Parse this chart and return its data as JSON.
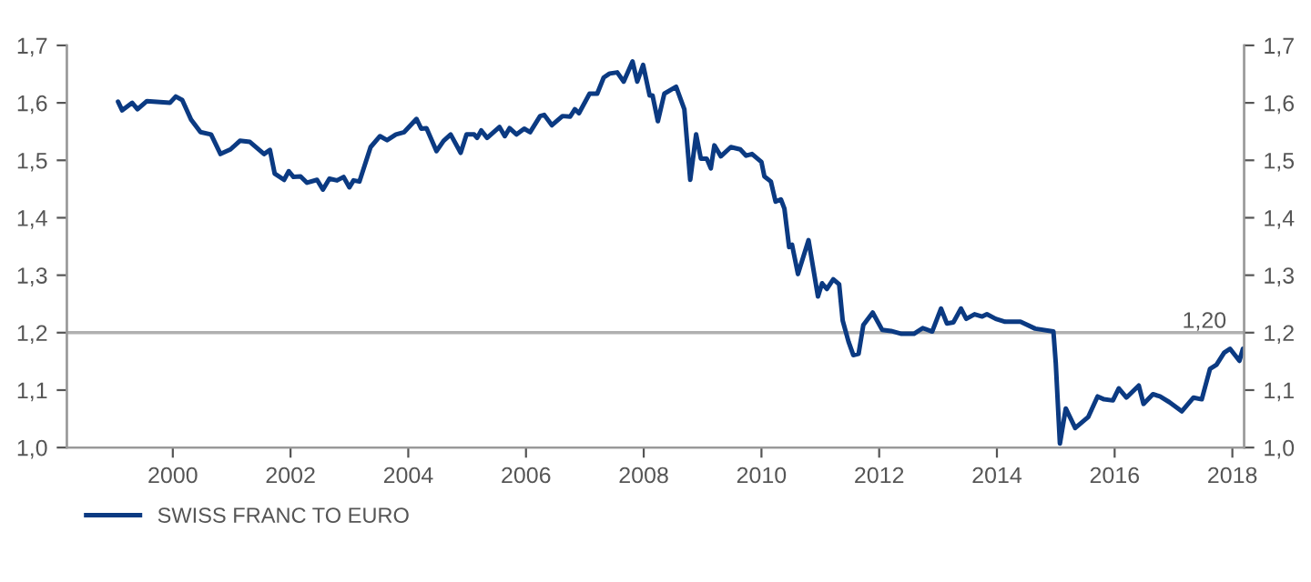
{
  "chart_data": {
    "type": "line",
    "xlim": [
      1998.2,
      2018.2
    ],
    "xticks": [
      2000,
      2002,
      2004,
      2006,
      2008,
      2010,
      2012,
      2014,
      2016,
      2018
    ],
    "ylim": [
      1.0,
      1.7
    ],
    "yticks": [
      {
        "value": 1.0,
        "label": "1,0"
      },
      {
        "value": 1.1,
        "label": "1,1"
      },
      {
        "value": 1.2,
        "label": "1,2"
      },
      {
        "value": 1.3,
        "label": "1,3"
      },
      {
        "value": 1.4,
        "label": "1,4"
      },
      {
        "value": 1.5,
        "label": "1,5"
      },
      {
        "value": 1.6,
        "label": "1,6"
      },
      {
        "value": 1.7,
        "label": "1,7"
      }
    ],
    "y2lim": [
      1.0,
      1.7
    ],
    "y2ticks": [
      {
        "value": 1.0,
        "label": "1,0"
      },
      {
        "value": 1.1,
        "label": "1,1"
      },
      {
        "value": 1.2,
        "label": "1,2"
      },
      {
        "value": 1.3,
        "label": "1,3"
      },
      {
        "value": 1.4,
        "label": "1,4"
      },
      {
        "value": 1.5,
        "label": "1,5"
      },
      {
        "value": 1.6,
        "label": "1,6"
      },
      {
        "value": 1.7,
        "label": "1,7"
      }
    ],
    "ref_lines": [
      {
        "axis": "y",
        "value": 1.2,
        "label": "1,20",
        "color": "#b0b0b0"
      }
    ],
    "legend": "bottom left",
    "series": [
      {
        "name": "SWISS FRANC TO EURO",
        "color": "#0b3a82",
        "x": [
          1999.07,
          1999.14,
          1999.31,
          1999.4,
          1999.56,
          1999.95,
          2000.05,
          2000.16,
          2000.31,
          2000.47,
          2000.65,
          2000.81,
          2000.98,
          2001.14,
          2001.31,
          2001.55,
          2001.65,
          2001.73,
          2001.89,
          2001.97,
          2002.05,
          2002.17,
          2002.28,
          2002.45,
          2002.55,
          2002.66,
          2002.79,
          2002.9,
          2003.0,
          2003.07,
          2003.17,
          2003.36,
          2003.52,
          2003.64,
          2003.79,
          2003.93,
          2004.14,
          2004.22,
          2004.31,
          2004.48,
          2004.6,
          2004.72,
          2004.89,
          2004.99,
          2005.12,
          2005.17,
          2005.24,
          2005.34,
          2005.55,
          2005.64,
          2005.72,
          2005.84,
          2005.97,
          2006.07,
          2006.24,
          2006.31,
          2006.44,
          2006.62,
          2006.75,
          2006.83,
          2006.9,
          2007.08,
          2007.21,
          2007.32,
          2007.42,
          2007.55,
          2007.66,
          2007.81,
          2007.89,
          2007.99,
          2008.1,
          2008.15,
          2008.24,
          2008.35,
          2008.55,
          2008.69,
          2008.79,
          2008.89,
          2008.97,
          2009.07,
          2009.14,
          2009.2,
          2009.31,
          2009.48,
          2009.64,
          2009.74,
          2009.84,
          2010.0,
          2010.05,
          2010.16,
          2010.24,
          2010.33,
          2010.39,
          2010.47,
          2010.52,
          2010.62,
          2010.8,
          2010.96,
          2011.03,
          2011.11,
          2011.22,
          2011.32,
          2011.38,
          2011.48,
          2011.56,
          2011.65,
          2011.73,
          2011.89,
          2012.05,
          2012.2,
          2012.38,
          2012.59,
          2012.74,
          2012.9,
          2013.05,
          2013.15,
          2013.26,
          2013.39,
          2013.48,
          2013.62,
          2013.75,
          2013.83,
          2013.98,
          2014.14,
          2014.4,
          2014.65,
          2014.96,
          2015.0,
          2015.07,
          2015.17,
          2015.33,
          2015.55,
          2015.71,
          2015.82,
          2015.97,
          2016.07,
          2016.2,
          2016.41,
          2016.49,
          2016.65,
          2016.77,
          2016.93,
          2017.14,
          2017.34,
          2017.48,
          2017.62,
          2017.73,
          2017.86,
          2017.96,
          2018.12,
          2018.18
        ],
        "values": [
          1.602,
          1.587,
          1.6,
          1.589,
          1.603,
          1.6,
          1.611,
          1.605,
          1.571,
          1.549,
          1.545,
          1.511,
          1.519,
          1.534,
          1.532,
          1.511,
          1.518,
          1.477,
          1.466,
          1.481,
          1.471,
          1.472,
          1.461,
          1.466,
          1.449,
          1.468,
          1.465,
          1.471,
          1.453,
          1.465,
          1.463,
          1.523,
          1.542,
          1.535,
          1.545,
          1.549,
          1.572,
          1.555,
          1.556,
          1.516,
          1.534,
          1.545,
          1.513,
          1.545,
          1.545,
          1.539,
          1.552,
          1.539,
          1.558,
          1.542,
          1.556,
          1.545,
          1.555,
          1.549,
          1.577,
          1.579,
          1.561,
          1.577,
          1.576,
          1.589,
          1.582,
          1.616,
          1.616,
          1.644,
          1.651,
          1.653,
          1.637,
          1.672,
          1.637,
          1.666,
          1.613,
          1.613,
          1.568,
          1.616,
          1.628,
          1.589,
          1.466,
          1.545,
          1.503,
          1.503,
          1.486,
          1.526,
          1.507,
          1.523,
          1.519,
          1.508,
          1.511,
          1.497,
          1.472,
          1.463,
          1.428,
          1.432,
          1.416,
          1.349,
          1.353,
          1.302,
          1.361,
          1.263,
          1.286,
          1.276,
          1.293,
          1.284,
          1.221,
          1.184,
          1.161,
          1.163,
          1.213,
          1.235,
          1.205,
          1.203,
          1.198,
          1.198,
          1.208,
          1.202,
          1.242,
          1.216,
          1.218,
          1.242,
          1.224,
          1.232,
          1.228,
          1.232,
          1.224,
          1.219,
          1.219,
          1.207,
          1.202,
          1.147,
          1.007,
          1.068,
          1.034,
          1.053,
          1.089,
          1.084,
          1.082,
          1.103,
          1.087,
          1.108,
          1.076,
          1.093,
          1.089,
          1.079,
          1.063,
          1.087,
          1.084,
          1.137,
          1.144,
          1.165,
          1.172,
          1.151,
          1.172
        ]
      }
    ]
  }
}
